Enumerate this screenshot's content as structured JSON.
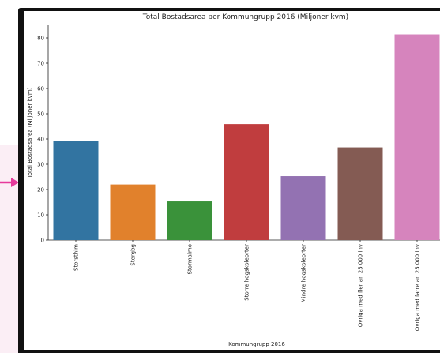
{
  "chart_data": {
    "type": "bar",
    "title": "Total Bostadsarea per Kommungrupp 2016 (Miljoner kvm)",
    "xlabel": "Kommungrupp 2016",
    "ylabel": "Total Bostadsarea (Miljoner kvm)",
    "ylim": [
      0,
      85
    ],
    "yticks": [
      0,
      10,
      20,
      30,
      40,
      50,
      60,
      70,
      80
    ],
    "categories": [
      "Storsthlm",
      "Storgbg",
      "Stormalmo",
      "Storre hogskoleorter",
      "Mindre hogskoleorter",
      "Ovriga med fler an 25 000 inv",
      "Ovriga med farre an 25 000 inv"
    ],
    "values": [
      39.2,
      22.0,
      15.3,
      45.9,
      25.3,
      36.7,
      81.4
    ],
    "colors": [
      "#3274a1",
      "#e1812c",
      "#3a923a",
      "#c03d3e",
      "#9372b2",
      "#845b53",
      "#d684bd"
    ],
    "grid": false
  }
}
